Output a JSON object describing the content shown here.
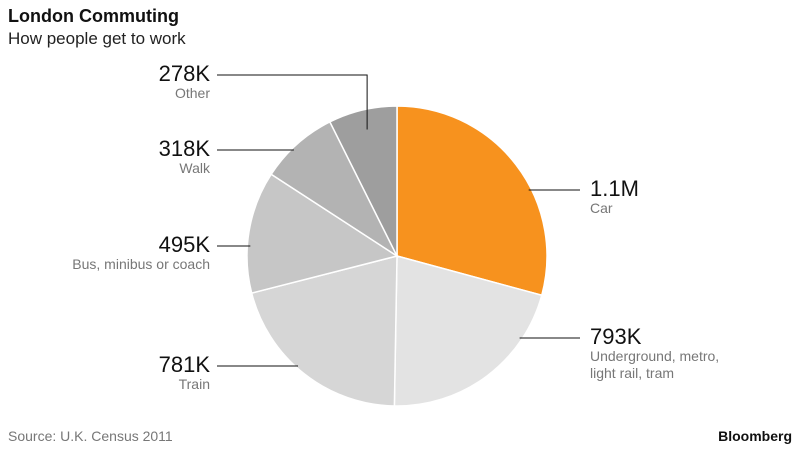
{
  "chart_data": {
    "type": "pie",
    "title": "London Commuting",
    "subtitle": "How people get to work",
    "categories": [
      "Car",
      "Underground, metro, light rail, tram",
      "Train",
      "Bus, minibus or coach",
      "Walk",
      "Other"
    ],
    "values": [
      1100000,
      793000,
      781000,
      495000,
      318000,
      278000
    ],
    "value_labels": [
      "1.1M",
      "793K",
      "781K",
      "495K",
      "318K",
      "278K"
    ],
    "colors": [
      "#f7921e",
      "#e3e3e3",
      "#d6d6d6",
      "#c6c6c6",
      "#b3b3b3",
      "#9e9e9e"
    ],
    "source": "Source: U.K. Census 2011",
    "brand": "Bloomberg"
  }
}
